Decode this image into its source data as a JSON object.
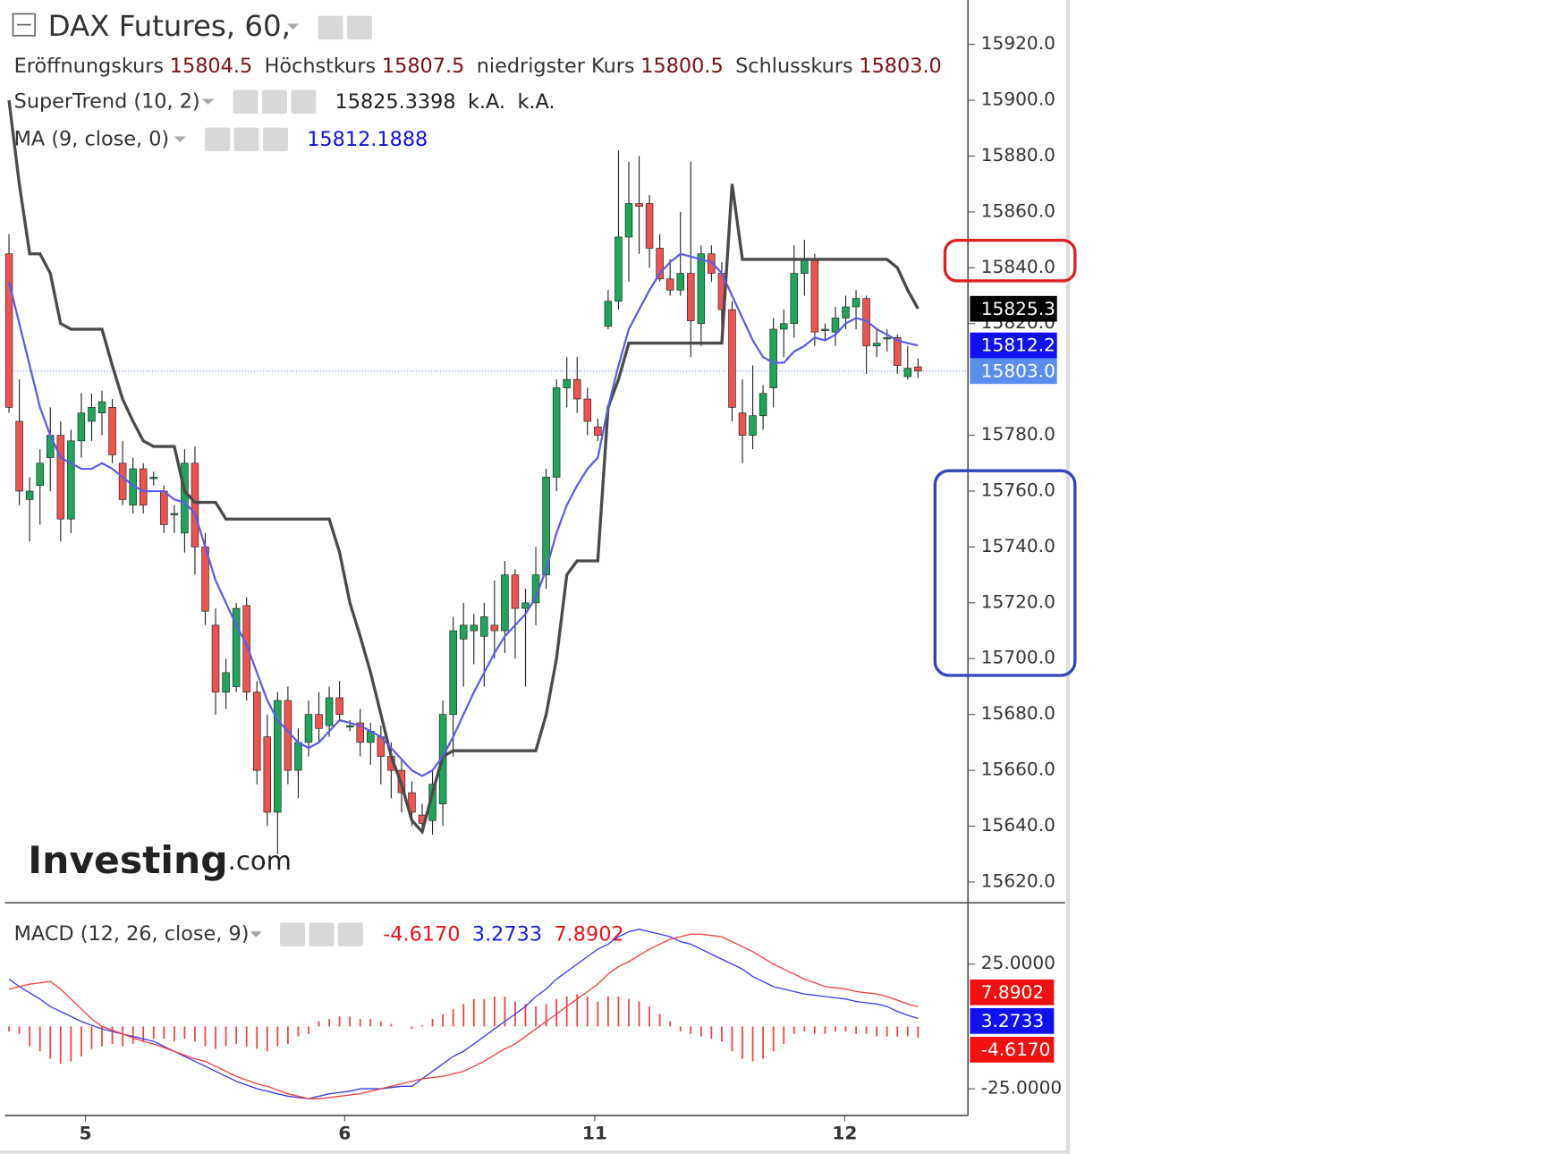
{
  "chart_data": [
    {
      "type": "candlestick",
      "title": "DAX Futures, 60,",
      "ohlc_legend": [
        {
          "label": "Eröffnungskurs",
          "value": "15804.5"
        },
        {
          "label": "Höchstkurs",
          "value": "15807.5"
        },
        {
          "label": "niedrigster Kurs",
          "value": "15800.5"
        },
        {
          "label": "Schlusskurs",
          "value": "15803.0"
        }
      ],
      "up_color": "#1ea55b",
      "down_color": "#ef5350",
      "open": [
        15845,
        15785,
        15757,
        15762,
        15772,
        15780,
        15750,
        15778,
        15785,
        15788,
        15790,
        15770,
        15755,
        15768,
        15765,
        15760,
        15752,
        15745,
        15770,
        15740,
        15712,
        15688,
        15690,
        15719,
        15688,
        15672,
        15645,
        15685,
        15660,
        15670,
        15680,
        15676,
        15686,
        15676,
        15677,
        15670,
        15672,
        15665,
        15660,
        15652,
        15644,
        15642,
        15648,
        15680,
        15707,
        15710,
        15708,
        15712,
        15710,
        15730,
        15718,
        15720,
        15730,
        15765,
        15797,
        15800,
        15793,
        15783,
        15819,
        15828,
        15851,
        15863,
        15863,
        15847,
        15836,
        15832,
        15838,
        15820,
        15845,
        15838,
        15825,
        15788,
        15780,
        15787,
        15797,
        15818,
        15820,
        15838,
        15843,
        15818,
        15817,
        15822,
        15826,
        15829,
        15812,
        15815,
        15815,
        15801,
        15804.5
      ],
      "high": [
        15852,
        15800,
        15765,
        15775,
        15790,
        15785,
        15782,
        15795,
        15795,
        15796,
        15793,
        15778,
        15772,
        15770,
        15767,
        15762,
        15755,
        15775,
        15776,
        15745,
        15718,
        15700,
        15720,
        15722,
        15692,
        15680,
        15688,
        15690,
        15675,
        15685,
        15688,
        15690,
        15692,
        15678,
        15682,
        15677,
        15676,
        15670,
        15664,
        15656,
        15648,
        15660,
        15685,
        15715,
        15720,
        15716,
        15720,
        15728,
        15735,
        15732,
        15725,
        15740,
        15768,
        15800,
        15808,
        15808,
        15797,
        15786,
        15832,
        15882,
        15878,
        15880,
        15866,
        15852,
        15843,
        15860,
        15878,
        15848,
        15848,
        15842,
        15828,
        15800,
        15805,
        15798,
        15822,
        15825,
        15848,
        15850,
        15845,
        15820,
        15826,
        15830,
        15832,
        15830,
        15818,
        15818,
        15816,
        15812,
        15807.5
      ],
      "low": [
        15788,
        15755,
        15742,
        15748,
        15760,
        15742,
        15745,
        15772,
        15778,
        15780,
        15770,
        15755,
        15752,
        15752,
        15762,
        15745,
        15745,
        15738,
        15730,
        15712,
        15680,
        15682,
        15688,
        15685,
        15655,
        15640,
        15630,
        15655,
        15650,
        15665,
        15670,
        15672,
        15678,
        15674,
        15665,
        15662,
        15655,
        15650,
        15645,
        15640,
        15638,
        15637,
        15640,
        15665,
        15690,
        15698,
        15690,
        15700,
        15702,
        15700,
        15690,
        15712,
        15725,
        15760,
        15790,
        15788,
        15780,
        15778,
        15818,
        15825,
        15835,
        15845,
        15840,
        15835,
        15830,
        15830,
        15808,
        15812,
        15835,
        15818,
        15785,
        15770,
        15775,
        15782,
        15790,
        15808,
        15815,
        15830,
        15812,
        15814,
        15812,
        15818,
        15818,
        15802,
        15808,
        15810,
        15802,
        15800,
        15800.5
      ],
      "close": [
        15790,
        15760,
        15760,
        15770,
        15780,
        15750,
        15778,
        15788,
        15790,
        15792,
        15773,
        15757,
        15768,
        15755,
        15765,
        15748,
        15752,
        15770,
        15740,
        15717,
        15688,
        15695,
        15718,
        15688,
        15660,
        15645,
        15685,
        15660,
        15670,
        15680,
        15675,
        15686,
        15680,
        15676,
        15670,
        15674,
        15665,
        15660,
        15652,
        15645,
        15641,
        15655,
        15680,
        15710,
        15712,
        15712,
        15715,
        15710,
        15730,
        15718,
        15720,
        15730,
        15765,
        15797,
        15800,
        15793,
        15785,
        15780,
        15828,
        15851,
        15863,
        15862,
        15847,
        15836,
        15832,
        15838,
        15821,
        15845,
        15838,
        15825,
        15790,
        15780,
        15787,
        15795,
        15818,
        15820,
        15838,
        15843,
        15817,
        15818,
        15822,
        15826,
        15829,
        15812,
        15813,
        15815,
        15805,
        15804,
        15803
      ],
      "series": [
        {
          "name": "SuperTrend (10, 2)",
          "color": "#4a4a4a",
          "legend_values": [
            "15825.3398",
            "k.A.",
            "k.A."
          ],
          "values": [
            15900,
            15870,
            15845,
            15845,
            15838,
            15820,
            15818,
            15818,
            15818,
            15818,
            15805,
            15793,
            15785,
            15778,
            15776,
            15776,
            15776,
            15760,
            15756,
            15756,
            15756,
            15750,
            15750,
            15750,
            15750,
            15750,
            15750,
            15750,
            15750,
            15750,
            15750,
            15750,
            15738,
            15720,
            15708,
            15695,
            15680,
            15665,
            15655,
            15642,
            15638,
            15652,
            15665,
            15667,
            15667,
            15667,
            15667,
            15667,
            15667,
            15667,
            15667,
            15667,
            15680,
            15700,
            15730,
            15735,
            15735,
            15735,
            15790,
            15800,
            15813,
            15813,
            15813,
            15813,
            15813,
            15813,
            15813,
            15813,
            15813,
            15813,
            15870,
            15843,
            15843,
            15843,
            15843,
            15843,
            15843,
            15843,
            15843,
            15843,
            15843,
            15843,
            15843,
            15843,
            15843,
            15843,
            15840,
            15832,
            15825.3398
          ]
        },
        {
          "name": "MA (9, close, 0)",
          "color": "#5b5be8",
          "legend_values": [
            "15812.1888"
          ],
          "values": [
            15835,
            15820,
            15805,
            15790,
            15780,
            15772,
            15770,
            15768,
            15768,
            15770,
            15768,
            15765,
            15762,
            15760,
            15760,
            15760,
            15757,
            15756,
            15752,
            15740,
            15728,
            15720,
            15712,
            15705,
            15695,
            15685,
            15678,
            15674,
            15670,
            15668,
            15670,
            15674,
            15678,
            15677,
            15676,
            15674,
            15672,
            15668,
            15664,
            15660,
            15658,
            15660,
            15665,
            15672,
            15680,
            15688,
            15695,
            15702,
            15708,
            15712,
            15716,
            15722,
            15732,
            15745,
            15755,
            15762,
            15768,
            15772,
            15790,
            15805,
            15818,
            15825,
            15832,
            15838,
            15842,
            15845,
            15844,
            15843,
            15842,
            15838,
            15830,
            15822,
            15814,
            15808,
            15806,
            15806,
            15810,
            15812,
            15815,
            15814,
            15816,
            15820,
            15822,
            15821,
            15818,
            15816,
            15814,
            15813,
            15812.1888
          ]
        }
      ],
      "ylim": [
        15612.9,
        15935.9
      ],
      "yticks": [
        {
          "value": 15620,
          "label": "15620.0"
        },
        {
          "value": 15640,
          "label": "15640.0"
        },
        {
          "value": 15660,
          "label": "15660.0"
        },
        {
          "value": 15680,
          "label": "15680.0"
        },
        {
          "value": 15700,
          "label": "15700.0"
        },
        {
          "value": 15720,
          "label": "15720.0"
        },
        {
          "value": 15740,
          "label": "15740.0"
        },
        {
          "value": 15760,
          "label": "15760.0"
        },
        {
          "value": 15780,
          "label": "15780.0"
        },
        {
          "value": 15820,
          "label": "15820.0"
        },
        {
          "value": 15840,
          "label": "15840.0"
        },
        {
          "value": 15860,
          "label": "15860.0"
        },
        {
          "value": 15880,
          "label": "15880.0"
        },
        {
          "value": 15900,
          "label": "15900.0"
        },
        {
          "value": 15920,
          "label": "15920.0"
        }
      ],
      "xticks": [
        {
          "value": 7.4,
          "label": "5"
        },
        {
          "value": 32.5,
          "label": "6"
        },
        {
          "value": 56.7,
          "label": "11"
        },
        {
          "value": 80.9,
          "label": "12"
        }
      ],
      "last_price_line": 15803,
      "tags": [
        {
          "value": 15825.3,
          "label": "15825.3",
          "color": "#000000"
        },
        {
          "value": 15812.2,
          "label": "15812.2",
          "color": "#1010f0"
        },
        {
          "value": 15803,
          "label": "15803.0",
          "color": "#5b8def"
        }
      ],
      "watermark": "Investing",
      "watermark_suffix": ".com"
    },
    {
      "type": "macd",
      "title": "MACD (12, 26, close, 9)",
      "legend_values": [
        {
          "text": "-4.6170",
          "color": "#e8141b"
        },
        {
          "text": "3.2733",
          "color": "#1a1aee"
        },
        {
          "text": "7.8902",
          "color": "#e8141b"
        }
      ],
      "histogram": {
        "color": "#ef4444",
        "values": [
          -2,
          -3,
          -8,
          -10,
          -13,
          -15,
          -14,
          -12,
          -9,
          -8,
          -7,
          -8,
          -7,
          -6,
          -5,
          -5,
          -6,
          -5,
          -6,
          -8,
          -9,
          -8,
          -7,
          -8,
          -9,
          -10,
          -8,
          -7,
          -4,
          -3,
          2,
          3,
          4,
          4,
          3,
          3,
          2,
          1,
          0,
          -1,
          0.5,
          3,
          5,
          7,
          9,
          11,
          11,
          12,
          12,
          10,
          9,
          8,
          9,
          11,
          12,
          13,
          12,
          10,
          12,
          12,
          11,
          10,
          8,
          5,
          2,
          -2,
          -3,
          -4,
          -5,
          -6,
          -10,
          -13,
          -14,
          -13,
          -10,
          -7,
          -3,
          -2,
          -3,
          -3,
          -2,
          -2,
          -3,
          -3,
          -4,
          -4,
          -4,
          -4,
          -4.617
        ]
      },
      "series": [
        {
          "color": "#3a3aee",
          "values": [
            19,
            16,
            13.5,
            11,
            8,
            6,
            4,
            2,
            0.5,
            -1,
            -2,
            -3,
            -4,
            -5,
            -6,
            -8,
            -10,
            -12,
            -14,
            -16,
            -18,
            -20,
            -22,
            -23.5,
            -25,
            -26,
            -27,
            -28,
            -28.5,
            -29,
            -28,
            -27,
            -26.5,
            -26,
            -25,
            -25,
            -25,
            -24.5,
            -24,
            -24,
            -21,
            -18,
            -15,
            -12,
            -10,
            -7,
            -4,
            -1,
            2,
            5,
            8,
            12,
            15,
            19,
            22,
            25,
            28,
            31,
            33,
            36,
            38,
            39,
            38,
            37,
            36,
            34,
            33,
            31,
            29,
            27,
            25,
            23,
            20,
            18,
            16,
            15,
            14,
            13,
            12.5,
            12,
            11.5,
            11,
            10,
            9.5,
            9,
            8,
            6,
            4.5,
            3.2733
          ]
        },
        {
          "color": "#ee4040",
          "values": [
            15,
            16,
            17,
            17.5,
            18,
            15,
            11,
            7,
            3,
            0,
            -1.5,
            -3,
            -4.5,
            -6,
            -7,
            -8.5,
            -10,
            -11.5,
            -13,
            -14,
            -16,
            -18,
            -20,
            -21.5,
            -23,
            -24,
            -25.5,
            -27,
            -28,
            -29,
            -29,
            -28.5,
            -28,
            -27.5,
            -27,
            -26,
            -25,
            -24,
            -23,
            -22,
            -21,
            -20.5,
            -20,
            -19,
            -18,
            -16,
            -14,
            -11.5,
            -9,
            -7,
            -4,
            -1,
            2,
            5,
            8,
            11,
            14,
            17,
            21,
            24,
            26,
            28.5,
            31,
            33,
            35,
            36,
            37,
            37,
            36.5,
            36,
            34,
            32,
            30,
            27.5,
            25,
            23,
            21,
            19,
            17.5,
            16,
            15.5,
            15,
            14,
            13.5,
            13,
            12,
            10.5,
            9,
            7.8902
          ]
        }
      ],
      "ylim": [
        -35.7,
        48.8
      ],
      "yticks": [
        {
          "value": -25,
          "label": "-25.0000"
        },
        {
          "value": 25,
          "label": "25.0000"
        }
      ],
      "tags": [
        {
          "value": 7.8902,
          "label": "7.8902",
          "color": "#f01010"
        },
        {
          "value": 3.2733,
          "label": "3.2733",
          "color": "#1010f0"
        },
        {
          "value": -4.617,
          "label": "-4.6170",
          "color": "#f01010"
        }
      ]
    }
  ]
}
